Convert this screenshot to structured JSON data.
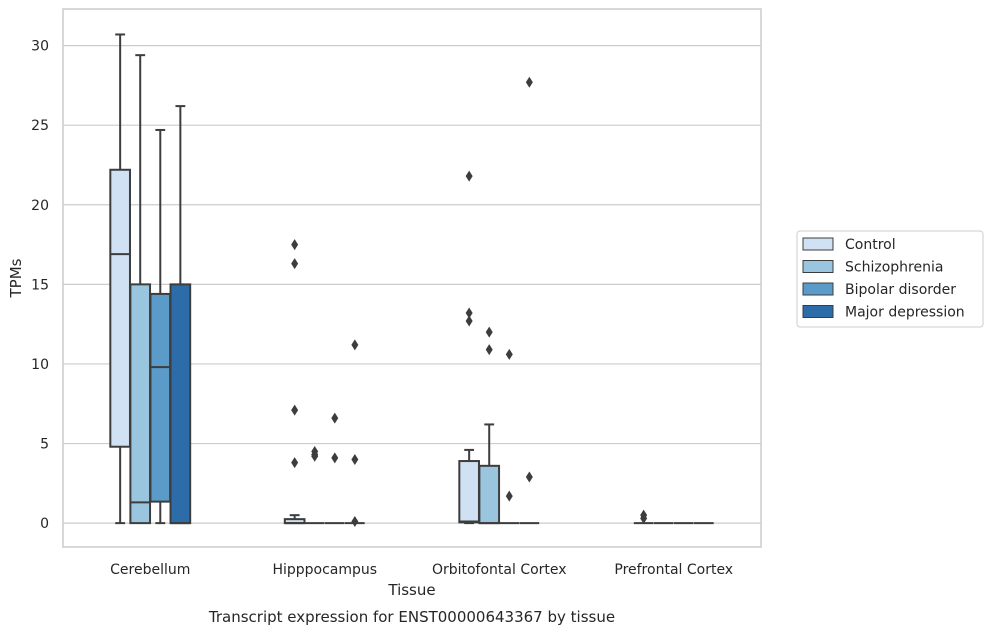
{
  "chart_data": {
    "type": "boxplot",
    "title": "Transcript expression for ENST00000643367 by tissue",
    "xlabel": "Tissue",
    "ylabel": "TPMs",
    "ylim": [
      -1.5,
      32.3
    ],
    "yticks": [
      0,
      5,
      10,
      15,
      20,
      25,
      30
    ],
    "grid": "horizontal",
    "legend_placement": "right",
    "categories": [
      "Cerebellum",
      "Hipppocampus",
      "Orbitofontal Cortex",
      "Prefrontal Cortex"
    ],
    "series": [
      {
        "name": "Control",
        "color": "#cfe1f2",
        "boxes": [
          {
            "whislo": 0,
            "q1": 4.8,
            "med": 16.9,
            "q3": 22.2,
            "whishi": 30.7,
            "fliers": []
          },
          {
            "whislo": 0,
            "q1": 0,
            "med": 0,
            "q3": 0.25,
            "whishi": 0.5,
            "fliers": [
              3.8,
              7.1,
              16.3,
              17.5
            ]
          },
          {
            "whislo": 0,
            "q1": 0.05,
            "med": 0.1,
            "q3": 3.9,
            "whishi": 4.6,
            "fliers": [
              12.7,
              13.2,
              21.8
            ]
          },
          {
            "whislo": 0,
            "q1": 0,
            "med": 0,
            "q3": 0,
            "whishi": 0,
            "fliers": [
              0.3,
              0.5
            ]
          }
        ]
      },
      {
        "name": "Schizophrenia",
        "color": "#9ac5de",
        "boxes": [
          {
            "whislo": 0,
            "q1": 0,
            "med": 1.3,
            "q3": 15.0,
            "whishi": 29.4,
            "fliers": []
          },
          {
            "whislo": 0,
            "q1": 0,
            "med": 0,
            "q3": 0,
            "whishi": 0,
            "fliers": [
              4.5,
              4.2,
              4.3
            ]
          },
          {
            "whislo": 0,
            "q1": 0,
            "med": 0,
            "q3": 3.6,
            "whishi": 6.2,
            "fliers": [
              10.9,
              12.0
            ]
          },
          {
            "whislo": 0,
            "q1": 0,
            "med": 0,
            "q3": 0,
            "whishi": 0,
            "fliers": []
          }
        ]
      },
      {
        "name": "Bipolar disorder",
        "color": "#5a9bc9",
        "boxes": [
          {
            "whislo": 0,
            "q1": 1.35,
            "med": 9.8,
            "q3": 14.4,
            "whishi": 24.7,
            "fliers": []
          },
          {
            "whislo": 0,
            "q1": 0,
            "med": 0,
            "q3": 0,
            "whishi": 0,
            "fliers": [
              6.6,
              4.1
            ]
          },
          {
            "whislo": 0,
            "q1": 0,
            "med": 0,
            "q3": 0,
            "whishi": 0,
            "fliers": [
              1.7,
              10.6
            ]
          },
          {
            "whislo": 0,
            "q1": 0,
            "med": 0,
            "q3": 0,
            "whishi": 0,
            "fliers": []
          }
        ]
      },
      {
        "name": "Major depression",
        "color": "#2c6ca9",
        "boxes": [
          {
            "whislo": 0,
            "q1": 0,
            "med": 0,
            "q3": 15.0,
            "whishi": 26.2,
            "fliers": []
          },
          {
            "whislo": 0,
            "q1": 0,
            "med": 0,
            "q3": 0,
            "whishi": 0,
            "fliers": [
              0.1,
              4.0,
              11.2
            ]
          },
          {
            "whislo": 0,
            "q1": 0,
            "med": 0,
            "q3": 0,
            "whishi": 0,
            "fliers": [
              2.9,
              27.7
            ]
          },
          {
            "whislo": 0,
            "q1": 0,
            "med": 0,
            "q3": 0,
            "whishi": 0,
            "fliers": []
          }
        ]
      }
    ]
  }
}
